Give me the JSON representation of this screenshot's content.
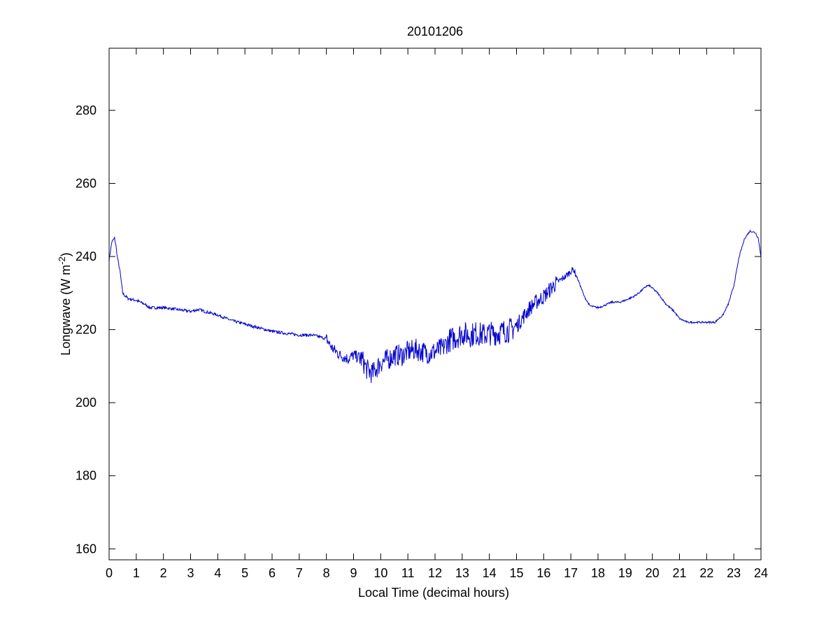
{
  "chart_data": {
    "type": "line",
    "title": "20101206",
    "xlabel": "Local Time (decimal hours)",
    "ylabel": "Longwave (W m",
    "ylabel_superscript": "-2",
    "ylabel_suffix": ")",
    "xlim": [
      0,
      24
    ],
    "ylim": [
      157,
      297
    ],
    "xticks": [
      0,
      1,
      2,
      3,
      4,
      5,
      6,
      7,
      8,
      9,
      10,
      11,
      12,
      13,
      14,
      15,
      16,
      17,
      18,
      19,
      20,
      21,
      22,
      23,
      24
    ],
    "yticks": [
      160,
      180,
      200,
      220,
      240,
      260,
      280
    ],
    "grid": false,
    "line_color": "#0000cc",
    "series": [
      {
        "x": [
          0,
          0.1,
          0.2,
          0.25,
          0.3,
          0.4,
          0.5,
          0.55,
          0.7,
          1.0,
          1.3,
          1.5,
          2.0,
          2.5,
          3.0,
          3.3,
          3.5,
          4.0,
          4.5,
          5.0,
          5.5,
          6.0,
          6.5,
          7.0,
          7.5,
          8.0,
          8.2,
          8.5,
          8.8,
          9.0,
          9.3,
          9.5,
          9.7,
          10.0,
          10.3,
          10.5,
          10.8,
          11.0,
          11.3,
          11.5,
          11.8,
          12.0,
          12.3,
          12.5,
          12.8,
          13.0,
          13.3,
          13.5,
          13.8,
          14.0,
          14.3,
          14.5,
          14.8,
          15.0,
          15.3,
          15.5,
          15.8,
          16.0,
          16.3,
          16.5,
          16.8,
          17.0,
          17.1,
          17.3,
          17.5,
          17.7,
          18.0,
          18.2,
          18.5,
          18.8,
          19.0,
          19.3,
          19.5,
          19.8,
          19.9,
          20.2,
          20.5,
          20.8,
          21.0,
          21.3,
          21.7,
          22.0,
          22.3,
          22.6,
          22.8,
          23.0,
          23.2,
          23.4,
          23.6,
          23.8,
          23.9,
          24.0
        ],
        "y": [
          239,
          244,
          245,
          243,
          240,
          236,
          230,
          229.5,
          228.5,
          228,
          227,
          226,
          226,
          225.5,
          225,
          225.5,
          225,
          224,
          222.5,
          221.5,
          220.5,
          219.5,
          219,
          218.5,
          218.5,
          217.5,
          215,
          213,
          212,
          213,
          212,
          209,
          208,
          211,
          212,
          213,
          213,
          214,
          214.5,
          214,
          213.5,
          214,
          215,
          217,
          218,
          219,
          218.5,
          219,
          218.5,
          219,
          219,
          219.5,
          220,
          221,
          224,
          226,
          228,
          229,
          231.5,
          233,
          234.5,
          236,
          236.5,
          233,
          229,
          226.5,
          226,
          226.5,
          227.5,
          227.5,
          228,
          229,
          230,
          232,
          232,
          230,
          227,
          225,
          223,
          222,
          222,
          222,
          222,
          224,
          227,
          232,
          240,
          245,
          247,
          246.5,
          245,
          240
        ]
      }
    ]
  }
}
